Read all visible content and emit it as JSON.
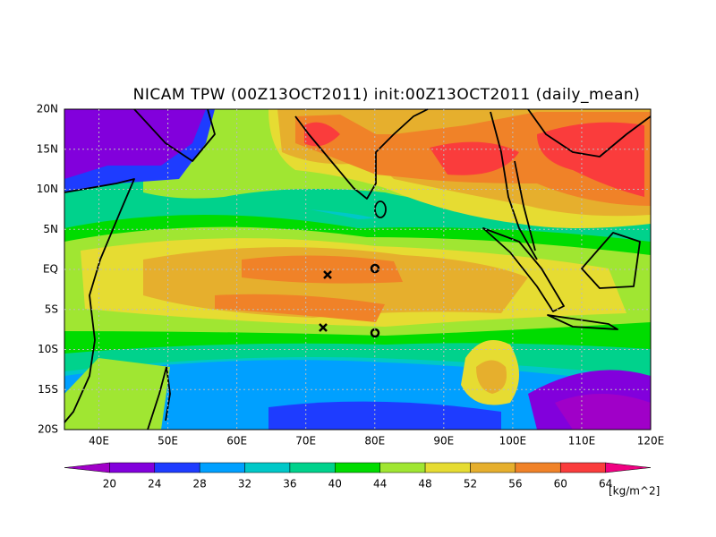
{
  "title": "NICAM TPW (00Z13OCT2011) init:00Z13OCT2011 (daily_mean)",
  "map": {
    "lon_range": [
      35,
      120
    ],
    "lat_range": [
      -20,
      20
    ],
    "lon_ticks": [
      {
        "value": 40,
        "label": "40E"
      },
      {
        "value": 50,
        "label": "50E"
      },
      {
        "value": 60,
        "label": "60E"
      },
      {
        "value": 70,
        "label": "70E"
      },
      {
        "value": 80,
        "label": "80E"
      },
      {
        "value": 90,
        "label": "90E"
      },
      {
        "value": 100,
        "label": "100E"
      },
      {
        "value": 110,
        "label": "110E"
      },
      {
        "value": 120,
        "label": "120E"
      }
    ],
    "lat_ticks": [
      {
        "value": 20,
        "label": "20N"
      },
      {
        "value": 15,
        "label": "15N"
      },
      {
        "value": 10,
        "label": "10N"
      },
      {
        "value": 5,
        "label": "5N"
      },
      {
        "value": 0,
        "label": "EQ"
      },
      {
        "value": -5,
        "label": "5S"
      },
      {
        "value": -10,
        "label": "10S"
      },
      {
        "value": -15,
        "label": "15S"
      },
      {
        "value": -20,
        "label": "20S"
      }
    ]
  },
  "colorbar": {
    "levels": [
      20,
      24,
      28,
      32,
      36,
      40,
      44,
      48,
      52,
      56,
      60,
      64
    ],
    "colors": [
      "#a000c8",
      "#8200dc",
      "#1e3cff",
      "#00a0ff",
      "#00c8c8",
      "#00d28c",
      "#00dc00",
      "#a0e632",
      "#e6dc32",
      "#e6af2d",
      "#f08228",
      "#fa3c3c",
      "#f00082"
    ],
    "unit": "[kg/m^2]"
  }
}
